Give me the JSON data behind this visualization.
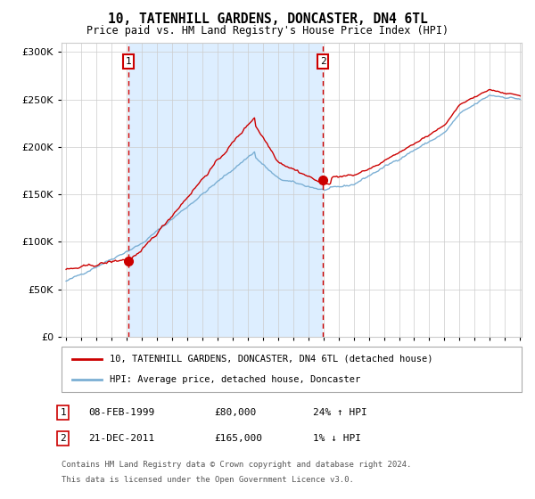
{
  "title": "10, TATENHILL GARDENS, DONCASTER, DN4 6TL",
  "subtitle": "Price paid vs. HM Land Registry's House Price Index (HPI)",
  "sale1_date": "08-FEB-1999",
  "sale1_price": 80000,
  "sale1_label": "24% ↑ HPI",
  "sale2_date": "21-DEC-2011",
  "sale2_price": 165000,
  "sale2_label": "1% ↓ HPI",
  "legend_line1": "10, TATENHILL GARDENS, DONCASTER, DN4 6TL (detached house)",
  "legend_line2": "HPI: Average price, detached house, Doncaster",
  "footer1": "Contains HM Land Registry data © Crown copyright and database right 2024.",
  "footer2": "This data is licensed under the Open Government Licence v3.0.",
  "red_color": "#cc0000",
  "blue_color": "#7bafd4",
  "shade_color": "#ddeeff",
  "bg_color": "#ffffff",
  "grid_color": "#cccccc",
  "ylim": [
    0,
    310000
  ],
  "ylabel_ticks": [
    0,
    50000,
    100000,
    150000,
    200000,
    250000,
    300000
  ],
  "sale1_year": 1999.1,
  "sale2_year": 2011.97,
  "xmin": 1995.0,
  "xmax": 2025.0
}
